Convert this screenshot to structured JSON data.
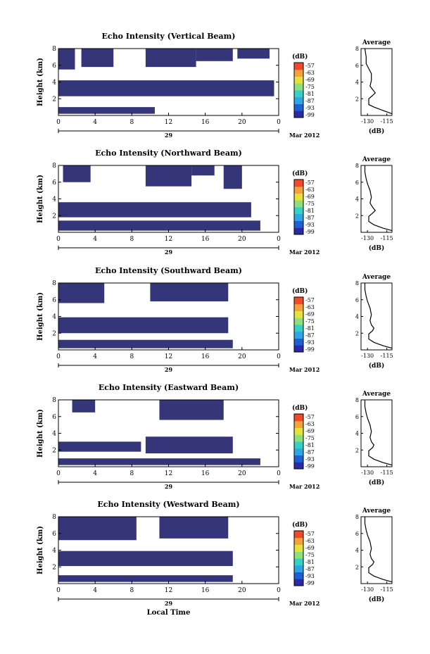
{
  "chart_data": [
    {
      "type": "heatmap",
      "title": "Echo Intensity (Vertical Beam)",
      "ylabel": "Height (km)",
      "xlabel": "",
      "x_ticks": [
        "0",
        "4",
        "8",
        "12",
        "16",
        "20",
        "0"
      ],
      "date_label": "29",
      "month_label": "Mar 2012",
      "xlim": [
        0,
        24
      ],
      "ylim": [
        0,
        8
      ],
      "y_ticks": [
        "2",
        "4",
        "6",
        "8"
      ],
      "colorbar": {
        "unit": "(dB)",
        "ticks": [
          "-57",
          "-63",
          "-69",
          "-75",
          "-81",
          "-87",
          "-93",
          "-99"
        ]
      },
      "blocks": [
        {
          "x": [
            0.0,
            10.5
          ],
          "y": [
            0.2,
            1.0
          ]
        },
        {
          "x": [
            0.0,
            23.5
          ],
          "y": [
            2.3,
            4.2
          ]
        },
        {
          "x": [
            0.0,
            1.8
          ],
          "y": [
            5.5,
            8.0
          ]
        },
        {
          "x": [
            2.5,
            6.0
          ],
          "y": [
            5.8,
            8.0
          ]
        },
        {
          "x": [
            9.5,
            15.0
          ],
          "y": [
            5.8,
            8.0
          ]
        },
        {
          "x": [
            15.0,
            19.0
          ],
          "y": [
            6.5,
            8.0
          ]
        },
        {
          "x": [
            19.5,
            23.0
          ],
          "y": [
            6.8,
            8.0
          ]
        }
      ],
      "profile": {
        "title": "Average",
        "xlabel": "(dB)",
        "x_ticks": [
          "-130",
          "-115"
        ],
        "y_ticks": [
          "2",
          "4",
          "6",
          "8"
        ],
        "xlim": [
          -135,
          -111
        ],
        "ylim": [
          0,
          8
        ],
        "x": [
          -111,
          -118,
          -125,
          -129,
          -129,
          -126,
          -124,
          -126,
          -128,
          -127,
          -127,
          -129,
          -131,
          -131,
          -132
        ],
        "y": [
          0.2,
          0.6,
          1.0,
          1.3,
          2.0,
          2.4,
          2.7,
          3.1,
          3.5,
          4.2,
          5.0,
          5.6,
          6.2,
          7.0,
          8.0
        ]
      }
    },
    {
      "type": "heatmap",
      "title": "Echo Intensity (Northward Beam)",
      "ylabel": "Height (km)",
      "xlabel": "",
      "x_ticks": [
        "0",
        "4",
        "8",
        "12",
        "16",
        "20",
        "0"
      ],
      "date_label": "29",
      "month_label": "Mar 2012",
      "xlim": [
        0,
        24
      ],
      "ylim": [
        0,
        8
      ],
      "y_ticks": [
        "2",
        "4",
        "6",
        "8"
      ],
      "colorbar": {
        "unit": "(dB)",
        "ticks": [
          "-57",
          "-63",
          "-69",
          "-75",
          "-81",
          "-87",
          "-93",
          "-99"
        ]
      },
      "blocks": [
        {
          "x": [
            0.0,
            22.0
          ],
          "y": [
            0.2,
            1.4
          ]
        },
        {
          "x": [
            0.0,
            21.0
          ],
          "y": [
            1.8,
            3.6
          ]
        },
        {
          "x": [
            0.5,
            3.5
          ],
          "y": [
            6.0,
            8.0
          ]
        },
        {
          "x": [
            9.5,
            14.5
          ],
          "y": [
            5.5,
            8.0
          ]
        },
        {
          "x": [
            14.5,
            17.0
          ],
          "y": [
            6.8,
            8.0
          ]
        },
        {
          "x": [
            18.0,
            20.0
          ],
          "y": [
            5.2,
            8.0
          ]
        }
      ],
      "profile": {
        "title": "Average",
        "xlabel": "(dB)",
        "x_ticks": [
          "-130",
          "-115"
        ],
        "y_ticks": [
          "2",
          "4",
          "6",
          "8"
        ],
        "xlim": [
          -135,
          -111
        ],
        "ylim": [
          0,
          8
        ],
        "x": [
          -111,
          -118,
          -125,
          -129,
          -129,
          -126,
          -124,
          -126,
          -128,
          -127,
          -128,
          -130,
          -131,
          -132,
          -132
        ],
        "y": [
          0.2,
          0.5,
          0.9,
          1.3,
          1.9,
          2.3,
          2.6,
          3.0,
          3.5,
          4.2,
          5.0,
          5.8,
          6.4,
          7.2,
          8.0
        ]
      }
    },
    {
      "type": "heatmap",
      "title": "Echo Intensity (Southward Beam)",
      "ylabel": "Height (km)",
      "xlabel": "",
      "x_ticks": [
        "0",
        "4",
        "8",
        "12",
        "16",
        "20",
        "0"
      ],
      "date_label": "29",
      "month_label": "Mar 2012",
      "xlim": [
        0,
        24
      ],
      "ylim": [
        0,
        8
      ],
      "y_ticks": [
        "2",
        "4",
        "6",
        "8"
      ],
      "colorbar": {
        "unit": "(dB)",
        "ticks": [
          "-57",
          "-63",
          "-69",
          "-75",
          "-81",
          "-87",
          "-93",
          "-99"
        ]
      },
      "blocks": [
        {
          "x": [
            0.0,
            19.0
          ],
          "y": [
            0.2,
            1.2
          ]
        },
        {
          "x": [
            0.0,
            18.5
          ],
          "y": [
            2.0,
            3.9
          ]
        },
        {
          "x": [
            0.0,
            5.0
          ],
          "y": [
            5.6,
            8.0
          ]
        },
        {
          "x": [
            10.0,
            18.5
          ],
          "y": [
            5.8,
            8.0
          ]
        }
      ],
      "profile": {
        "title": "Average",
        "xlabel": "(dB)",
        "x_ticks": [
          "-130",
          "-115"
        ],
        "y_ticks": [
          "2",
          "4",
          "6",
          "8"
        ],
        "xlim": [
          -135,
          -111
        ],
        "ylim": [
          0,
          8
        ],
        "x": [
          -111,
          -118,
          -125,
          -129,
          -129,
          -126,
          -125,
          -127,
          -128,
          -127,
          -128,
          -130,
          -131,
          -132,
          -132
        ],
        "y": [
          0.2,
          0.5,
          0.9,
          1.3,
          1.9,
          2.3,
          2.6,
          3.0,
          3.5,
          4.2,
          5.0,
          5.8,
          6.4,
          7.2,
          8.0
        ]
      }
    },
    {
      "type": "heatmap",
      "title": "Echo Intensity (Eastward Beam)",
      "ylabel": "Height (km)",
      "xlabel": "",
      "x_ticks": [
        "0",
        "4",
        "8",
        "12",
        "16",
        "20",
        "0"
      ],
      "date_label": "29",
      "month_label": "Mar 2012",
      "xlim": [
        0,
        24
      ],
      "ylim": [
        0,
        8
      ],
      "y_ticks": [
        "2",
        "4",
        "6",
        "8"
      ],
      "colorbar": {
        "unit": "(dB)",
        "ticks": [
          "-57",
          "-63",
          "-69",
          "-75",
          "-81",
          "-87",
          "-93",
          "-99"
        ]
      },
      "blocks": [
        {
          "x": [
            0.0,
            22.0
          ],
          "y": [
            0.2,
            1.0
          ]
        },
        {
          "x": [
            0.0,
            9.0
          ],
          "y": [
            1.8,
            3.0
          ]
        },
        {
          "x": [
            9.5,
            19.0
          ],
          "y": [
            1.6,
            3.6
          ]
        },
        {
          "x": [
            1.5,
            4.0
          ],
          "y": [
            6.5,
            8.0
          ]
        },
        {
          "x": [
            11.0,
            18.0
          ],
          "y": [
            5.6,
            8.0
          ]
        }
      ],
      "profile": {
        "title": "Average",
        "xlabel": "(dB)",
        "x_ticks": [
          "-130",
          "-115"
        ],
        "y_ticks": [
          "2",
          "4",
          "6",
          "8"
        ],
        "xlim": [
          -135,
          -111
        ],
        "ylim": [
          0,
          8
        ],
        "x": [
          -111,
          -118,
          -125,
          -129,
          -129,
          -126,
          -125,
          -127,
          -128,
          -127,
          -128,
          -130,
          -131,
          -132,
          -132
        ],
        "y": [
          0.2,
          0.5,
          0.9,
          1.3,
          1.9,
          2.3,
          2.6,
          3.0,
          3.5,
          4.2,
          5.0,
          5.8,
          6.4,
          7.2,
          8.0
        ]
      }
    },
    {
      "type": "heatmap",
      "title": "Echo Intensity (Westward Beam)",
      "ylabel": "Height (km)",
      "xlabel": "Local Time",
      "x_ticks": [
        "0",
        "4",
        "8",
        "12",
        "16",
        "20",
        "0"
      ],
      "date_label": "29",
      "month_label": "Mar 2012",
      "xlim": [
        0,
        24
      ],
      "ylim": [
        0,
        8
      ],
      "y_ticks": [
        "2",
        "4",
        "6",
        "8"
      ],
      "colorbar": {
        "unit": "(dB)",
        "ticks": [
          "-57",
          "-63",
          "-69",
          "-75",
          "-81",
          "-87",
          "-93",
          "-99"
        ]
      },
      "blocks": [
        {
          "x": [
            0.0,
            19.0
          ],
          "y": [
            0.2,
            1.0
          ]
        },
        {
          "x": [
            0.0,
            19.0
          ],
          "y": [
            2.1,
            3.9
          ]
        },
        {
          "x": [
            0.0,
            8.5
          ],
          "y": [
            5.2,
            8.0
          ]
        },
        {
          "x": [
            11.0,
            18.5
          ],
          "y": [
            5.4,
            8.0
          ]
        }
      ],
      "profile": {
        "title": "Average",
        "xlabel": "(dB)",
        "x_ticks": [
          "-130",
          "-115"
        ],
        "y_ticks": [
          "2",
          "4",
          "6",
          "8"
        ],
        "xlim": [
          -135,
          -111
        ],
        "ylim": [
          0,
          8
        ],
        "x": [
          -111,
          -118,
          -125,
          -129,
          -129,
          -126,
          -125,
          -127,
          -128,
          -127,
          -128,
          -130,
          -131,
          -132,
          -132
        ],
        "y": [
          0.2,
          0.5,
          0.9,
          1.3,
          1.9,
          2.3,
          2.6,
          3.0,
          3.5,
          4.2,
          5.0,
          5.8,
          6.4,
          7.2,
          8.0
        ]
      }
    }
  ],
  "colors": {
    "fill": "#35357a",
    "colormap": [
      "#2a2aa8",
      "#1f5fd6",
      "#2ba6e6",
      "#35d0c8",
      "#8ee07a",
      "#e6e23a",
      "#f5a23a",
      "#f04a2a"
    ]
  }
}
